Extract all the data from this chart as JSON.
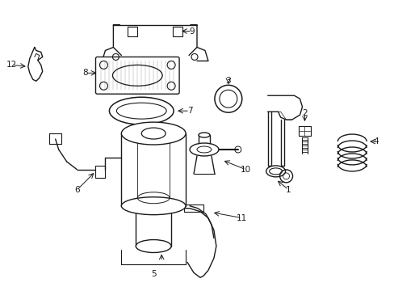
{
  "bg_color": "#ffffff",
  "line_color": "#1a1a1a",
  "fig_width": 4.89,
  "fig_height": 3.6,
  "dpi": 100,
  "xlim": [
    0,
    489
  ],
  "ylim": [
    0,
    360
  ]
}
